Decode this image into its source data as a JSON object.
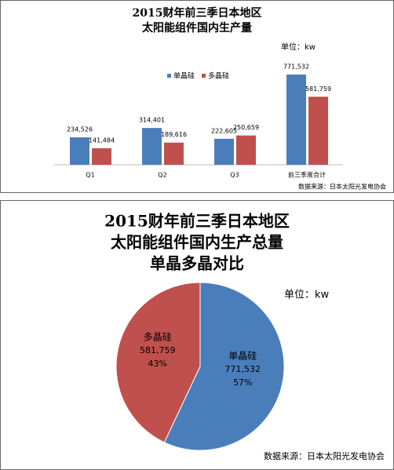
{
  "chart_data": [
    {
      "type": "bar",
      "title": [
        "2015财年前三季日本地区",
        "太阳能组件国内生产量"
      ],
      "unit": "单位：kw",
      "source": "数据来源：日本太阳光发电协会",
      "categories": [
        "Q1",
        "Q2",
        "Q3",
        "前三季度合计"
      ],
      "series": [
        {
          "name": "单晶硅",
          "color": "#4a7ebb",
          "values": [
            234526,
            314401,
            222605,
            771532
          ],
          "value_labels": [
            "234,526",
            "314,401",
            "222,605",
            "771,532"
          ]
        },
        {
          "name": "多晶硅",
          "color": "#c0504d",
          "values": [
            141484,
            189616,
            250659,
            581759
          ],
          "value_labels": [
            "141,484",
            "189,616",
            "250,659",
            "581,759"
          ]
        }
      ]
    },
    {
      "type": "pie",
      "title": [
        "2015财年前三季日本地区",
        "太阳能组件国内生产总量",
        "单晶多晶对比"
      ],
      "unit": "单位：kw",
      "source": "数据来源：日本太阳光发电协会",
      "categories": [
        "单晶硅",
        "多晶硅"
      ],
      "colors": [
        "#4a7ebb",
        "#c0504d"
      ],
      "values": [
        771532,
        581759
      ],
      "value_labels": [
        "771,532",
        "581,759"
      ],
      "percents": [
        {
          "value": 57,
          "label": "57%"
        },
        {
          "value": 43,
          "label": "43%"
        }
      ]
    }
  ]
}
